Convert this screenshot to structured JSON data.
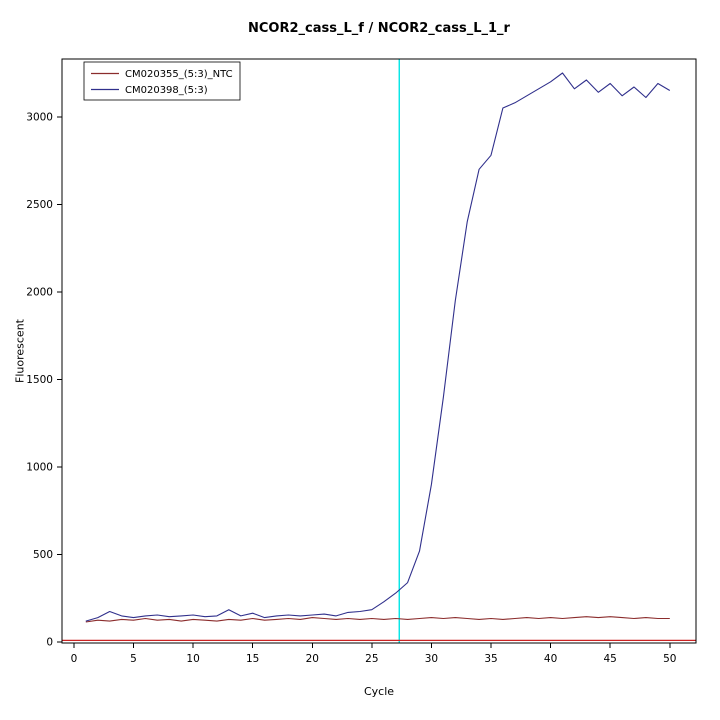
{
  "chart_data": {
    "type": "line",
    "title": "NCOR2_cass_L_f / NCOR2_cass_L_1_r",
    "xlabel": "Cycle",
    "ylabel": "Fluorescent",
    "x_range": [
      -1,
      52.2
    ],
    "y_range": [
      -5,
      3330
    ],
    "x_ticks": [
      0,
      5,
      10,
      15,
      20,
      25,
      30,
      35,
      40,
      45,
      50
    ],
    "y_ticks": [
      0,
      500,
      1000,
      1500,
      2000,
      2500,
      3000
    ],
    "grid": "off",
    "legend_position": "top-left",
    "x": [
      1,
      2,
      3,
      4,
      5,
      6,
      7,
      8,
      9,
      10,
      11,
      12,
      13,
      14,
      15,
      16,
      17,
      18,
      19,
      20,
      21,
      22,
      23,
      24,
      25,
      26,
      27,
      28,
      29,
      30,
      31,
      32,
      33,
      34,
      35,
      36,
      37,
      38,
      39,
      40,
      41,
      42,
      43,
      44,
      45,
      46,
      47,
      48,
      49,
      50
    ],
    "series": [
      {
        "name": "CM020355_(5:3)_NTC",
        "color": "#8b2c2c",
        "values": [
          115,
          125,
          120,
          130,
          125,
          135,
          125,
          130,
          120,
          130,
          125,
          120,
          130,
          125,
          135,
          125,
          130,
          135,
          130,
          140,
          135,
          130,
          135,
          130,
          135,
          130,
          135,
          130,
          135,
          140,
          135,
          140,
          135,
          130,
          135,
          130,
          135,
          140,
          135,
          140,
          135,
          140,
          145,
          140,
          145,
          140,
          135,
          140,
          135,
          135
        ]
      },
      {
        "name": "CM020398_(5:3)",
        "color": "#30308c",
        "values": [
          120,
          140,
          175,
          150,
          140,
          150,
          155,
          145,
          150,
          155,
          145,
          150,
          185,
          150,
          165,
          140,
          150,
          155,
          150,
          155,
          160,
          150,
          170,
          175,
          185,
          230,
          280,
          340,
          520,
          900,
          1400,
          1950,
          2400,
          2700,
          2780,
          3050,
          3080,
          3120,
          3160,
          3200,
          3250,
          3160,
          3210,
          3140,
          3190,
          3120,
          3170,
          3110,
          3190,
          3150
        ]
      }
    ],
    "baseline_hline": {
      "y": 10,
      "color": "#cc2222"
    },
    "ct_vline": {
      "x": 27.3,
      "color": "#00e5e5"
    },
    "legend_entries": [
      "CM020355_(5:3)_NTC",
      "CM020398_(5:3)"
    ]
  }
}
